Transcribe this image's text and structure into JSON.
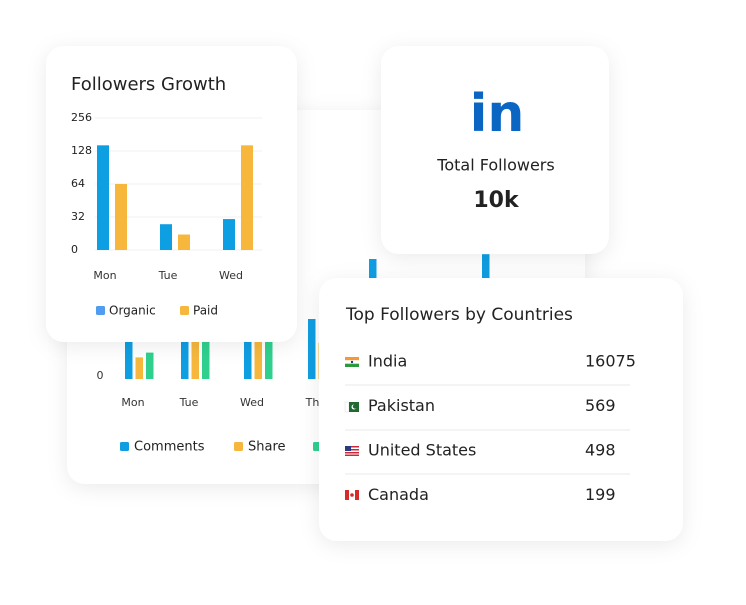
{
  "chart_data": [
    {
      "type": "bar",
      "categories": [
        "Mon",
        "Tue",
        "Wed",
        "Thu",
        null,
        null
      ],
      "ylim": [
        0,
        100
      ],
      "yticks": [
        0
      ],
      "series": [
        {
          "name": "Comments",
          "color": "#0e9ee2",
          "values": [
            30,
            45,
            42,
            25,
            50,
            52
          ]
        },
        {
          "name": "Share",
          "color": "#f6b73c",
          "values": [
            9,
            20,
            18,
            15,
            20,
            22
          ]
        },
        {
          "color": "#2fd08e",
          "values": [
            11,
            24,
            22,
            18,
            24,
            26
          ]
        }
      ]
    },
    {
      "type": "bar",
      "title": "Followers Growth",
      "categories": [
        "Mon",
        "Tue",
        "Wed"
      ],
      "ylim": [
        0,
        256
      ],
      "yticks": [
        0,
        32,
        64,
        128,
        256
      ],
      "grid": true,
      "series": [
        {
          "name": "Organic",
          "color": "#0e9ee2",
          "legend_color": "#4f9cf0",
          "values": [
            150,
            25,
            30
          ]
        },
        {
          "name": "Paid",
          "color": "#f6b73c",
          "legend_color": "#f6b73c",
          "values": [
            64,
            15,
            150
          ]
        }
      ]
    }
  ],
  "linkedin_card": {
    "logo": "in",
    "label": "Total Followers",
    "value": "10k"
  },
  "top_countries": {
    "title": "Top Followers by Countries",
    "rows": [
      {
        "country": "India",
        "followers": "16075"
      },
      {
        "country": "Pakistan",
        "followers": "569"
      },
      {
        "country": "United States",
        "followers": "498"
      },
      {
        "country": "Canada",
        "followers": "199"
      }
    ]
  }
}
